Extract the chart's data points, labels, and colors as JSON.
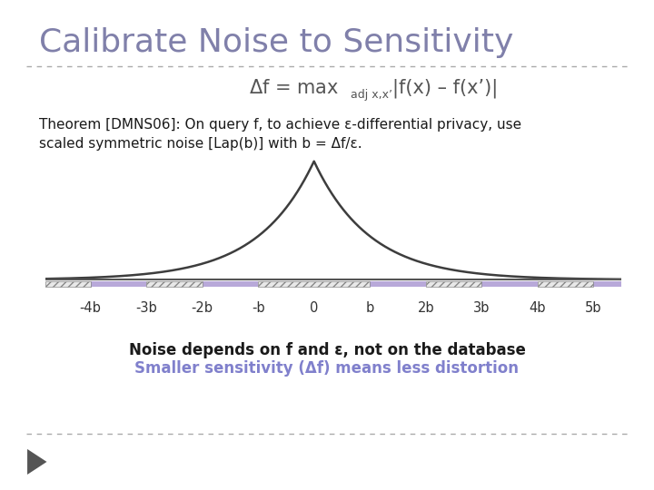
{
  "title": "Calibrate Noise to Sensitivity",
  "title_color": "#8080aa",
  "title_fontsize": 26,
  "background_color": "#ffffff",
  "theorem_line1": "Theorem [DMNS06]: On query f, to achieve ε-differential privacy, use",
  "theorem_line2": "scaled symmetric noise [Lap(b)] with b = Δf/ε.",
  "note_line1": "Noise depends on f and ε, not on the database",
  "note_line2": "Smaller sensitivity (Δf) means less distortion",
  "note_line2_color": "#8080cc",
  "tick_labels": [
    "-4b",
    "-3b",
    "-2b",
    "-b",
    "0",
    "b",
    "2b",
    "3b",
    "4b",
    "5b"
  ],
  "tick_positions": [
    -4,
    -3,
    -2,
    -1,
    0,
    1,
    2,
    3,
    4,
    5
  ],
  "laplace_b": 1.0,
  "curve_color": "#3d3d3d",
  "bar_color": "#b8a9d9",
  "separator_color": "#aaaaaa",
  "arrow_color": "#555555"
}
